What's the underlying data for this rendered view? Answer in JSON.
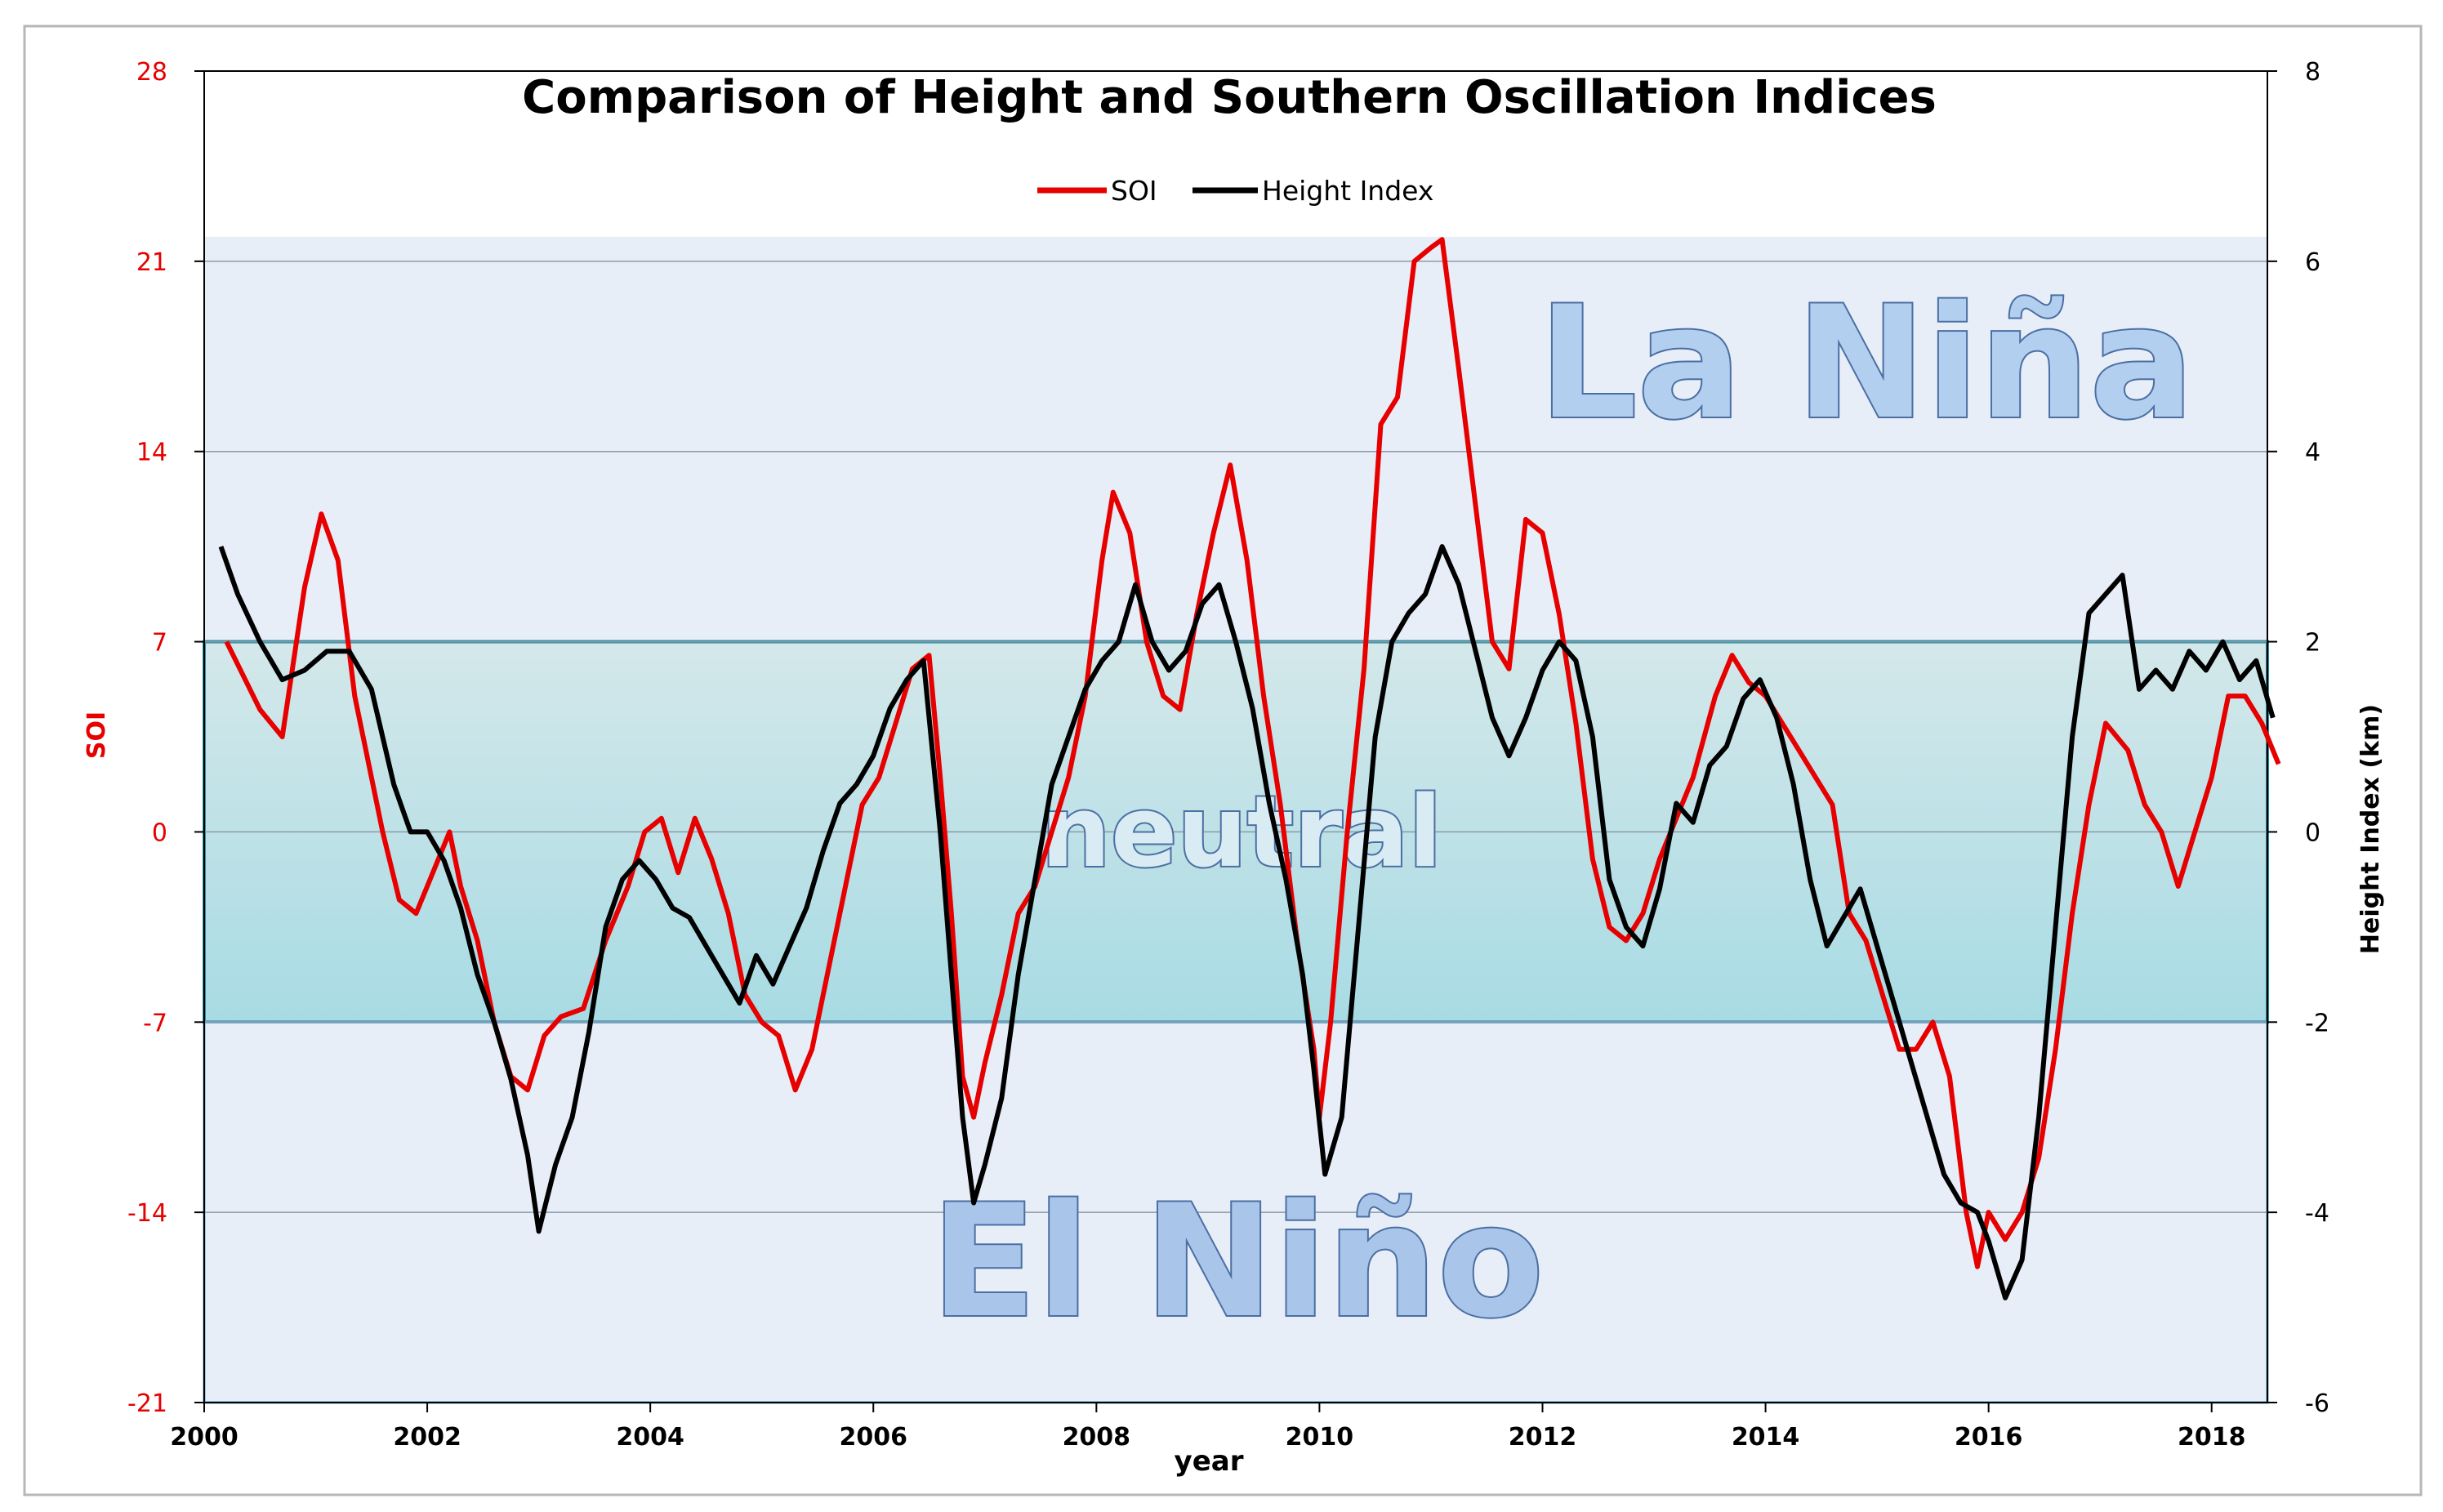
{
  "chart_data": {
    "type": "line",
    "title": "Comparison of Height and Southern Oscillation Indices",
    "xlabel": "year",
    "ylabel_left": "SOI",
    "ylabel_right": "Height Index (km)",
    "xlim": [
      2000,
      2018.5
    ],
    "ylim_left": [
      -21,
      28
    ],
    "ylim_right": [
      -6,
      8
    ],
    "x_ticks": [
      "2000",
      "2002",
      "2004",
      "2006",
      "2008",
      "2010",
      "2012",
      "2014",
      "2016",
      "2018"
    ],
    "y_left_ticks": [
      "28",
      "21",
      "14",
      "7",
      "0",
      "-7",
      "-14",
      "-21"
    ],
    "y_right_ticks": [
      "8",
      "6",
      "4",
      "2",
      "0",
      "-2",
      "-4",
      "-6"
    ],
    "grid": true,
    "legend_position": "top-center",
    "regions": [
      {
        "name": "La Niña",
        "label": "La Niña",
        "from": 7,
        "to": 21.9
      },
      {
        "name": "neutral",
        "label": "neutral",
        "from": -7,
        "to": 7
      },
      {
        "name": "El Niño",
        "label": "El Niño",
        "from": -21,
        "to": -7
      }
    ],
    "series": [
      {
        "name": "SOI",
        "axis": "left",
        "color": "#e60000",
        "points": [
          [
            2000.2,
            7
          ],
          [
            2000.5,
            4.5
          ],
          [
            2000.7,
            3.5
          ],
          [
            2000.9,
            9
          ],
          [
            2001.05,
            11.7
          ],
          [
            2001.2,
            10
          ],
          [
            2001.35,
            5
          ],
          [
            2001.6,
            0
          ],
          [
            2001.75,
            -2.5
          ],
          [
            2001.9,
            -3
          ],
          [
            2002.0,
            -2
          ],
          [
            2002.1,
            -1
          ],
          [
            2002.2,
            0
          ],
          [
            2002.3,
            -2
          ],
          [
            2002.45,
            -4
          ],
          [
            2002.6,
            -7
          ],
          [
            2002.75,
            -9
          ],
          [
            2002.9,
            -9.5
          ],
          [
            2003.05,
            -7.5
          ],
          [
            2003.2,
            -6.8
          ],
          [
            2003.4,
            -6.5
          ],
          [
            2003.6,
            -4
          ],
          [
            2003.8,
            -2
          ],
          [
            2003.95,
            0
          ],
          [
            2004.1,
            0.5
          ],
          [
            2004.25,
            -1.5
          ],
          [
            2004.4,
            0.5
          ],
          [
            2004.55,
            -1
          ],
          [
            2004.7,
            -3
          ],
          [
            2004.85,
            -6
          ],
          [
            2005.0,
            -7
          ],
          [
            2005.15,
            -7.5
          ],
          [
            2005.3,
            -9.5
          ],
          [
            2005.45,
            -8
          ],
          [
            2005.6,
            -5
          ],
          [
            2005.75,
            -2
          ],
          [
            2005.9,
            1
          ],
          [
            2006.05,
            2
          ],
          [
            2006.2,
            4
          ],
          [
            2006.35,
            6
          ],
          [
            2006.5,
            6.5
          ],
          [
            2006.6,
            2
          ],
          [
            2006.7,
            -3
          ],
          [
            2006.8,
            -9
          ],
          [
            2006.9,
            -10.5
          ],
          [
            2007.0,
            -8.5
          ],
          [
            2007.15,
            -6
          ],
          [
            2007.3,
            -3
          ],
          [
            2007.45,
            -2
          ],
          [
            2007.6,
            0
          ],
          [
            2007.75,
            2
          ],
          [
            2007.9,
            5
          ],
          [
            2008.05,
            10
          ],
          [
            2008.15,
            12.5
          ],
          [
            2008.3,
            11
          ],
          [
            2008.45,
            7
          ],
          [
            2008.6,
            5
          ],
          [
            2008.75,
            4.5
          ],
          [
            2008.9,
            8
          ],
          [
            2009.05,
            11
          ],
          [
            2009.2,
            13.5
          ],
          [
            2009.35,
            10
          ],
          [
            2009.5,
            5
          ],
          [
            2009.65,
            1
          ],
          [
            2009.8,
            -4
          ],
          [
            2009.95,
            -8
          ],
          [
            2010.0,
            -10.5
          ],
          [
            2010.1,
            -7
          ],
          [
            2010.25,
            0
          ],
          [
            2010.4,
            6
          ],
          [
            2010.55,
            15
          ],
          [
            2010.7,
            16
          ],
          [
            2010.85,
            21
          ],
          [
            2011.0,
            21.5
          ],
          [
            2011.1,
            21.8
          ],
          [
            2011.25,
            17
          ],
          [
            2011.4,
            12
          ],
          [
            2011.55,
            7
          ],
          [
            2011.7,
            6
          ],
          [
            2011.85,
            11.5
          ],
          [
            2012.0,
            11
          ],
          [
            2012.15,
            8
          ],
          [
            2012.3,
            4
          ],
          [
            2012.45,
            -1
          ],
          [
            2012.6,
            -3.5
          ],
          [
            2012.75,
            -4
          ],
          [
            2012.9,
            -3
          ],
          [
            2013.05,
            -1
          ],
          [
            2013.2,
            0.5
          ],
          [
            2013.35,
            2
          ],
          [
            2013.55,
            5
          ],
          [
            2013.7,
            6.5
          ],
          [
            2013.85,
            5.5
          ],
          [
            2014.0,
            5
          ],
          [
            2014.15,
            4
          ],
          [
            2014.3,
            3
          ],
          [
            2014.45,
            2
          ],
          [
            2014.6,
            1
          ],
          [
            2014.75,
            -3
          ],
          [
            2014.9,
            -4
          ],
          [
            2015.05,
            -6
          ],
          [
            2015.2,
            -8
          ],
          [
            2015.35,
            -8
          ],
          [
            2015.5,
            -7
          ],
          [
            2015.65,
            -9
          ],
          [
            2015.8,
            -14
          ],
          [
            2015.9,
            -16
          ],
          [
            2016.0,
            -14
          ],
          [
            2016.15,
            -15
          ],
          [
            2016.3,
            -14
          ],
          [
            2016.45,
            -12
          ],
          [
            2016.6,
            -8
          ],
          [
            2016.75,
            -3
          ],
          [
            2016.9,
            1
          ],
          [
            2017.05,
            4
          ],
          [
            2017.25,
            3
          ],
          [
            2017.4,
            1
          ],
          [
            2017.55,
            0
          ],
          [
            2017.7,
            -2
          ],
          [
            2017.85,
            0
          ],
          [
            2018.0,
            2
          ],
          [
            2018.15,
            5
          ],
          [
            2018.3,
            5
          ],
          [
            2018.45,
            4
          ],
          [
            2018.6,
            2.5
          ]
        ]
      },
      {
        "name": "Height Index",
        "axis": "right",
        "color": "#000000",
        "points": [
          [
            2000.15,
            3
          ],
          [
            2000.3,
            2.5
          ],
          [
            2000.5,
            2
          ],
          [
            2000.7,
            1.6
          ],
          [
            2000.9,
            1.7
          ],
          [
            2001.1,
            1.9
          ],
          [
            2001.3,
            1.9
          ],
          [
            2001.5,
            1.5
          ],
          [
            2001.7,
            0.5
          ],
          [
            2001.85,
            0
          ],
          [
            2002.0,
            0
          ],
          [
            2002.15,
            -0.3
          ],
          [
            2002.3,
            -0.8
          ],
          [
            2002.45,
            -1.5
          ],
          [
            2002.6,
            -2
          ],
          [
            2002.75,
            -2.6
          ],
          [
            2002.9,
            -3.4
          ],
          [
            2003.0,
            -4.2
          ],
          [
            2003.15,
            -3.5
          ],
          [
            2003.3,
            -3
          ],
          [
            2003.45,
            -2.1
          ],
          [
            2003.6,
            -1
          ],
          [
            2003.75,
            -0.5
          ],
          [
            2003.9,
            -0.3
          ],
          [
            2004.05,
            -0.5
          ],
          [
            2004.2,
            -0.8
          ],
          [
            2004.35,
            -0.9
          ],
          [
            2004.5,
            -1.2
          ],
          [
            2004.65,
            -1.5
          ],
          [
            2004.8,
            -1.8
          ],
          [
            2004.95,
            -1.3
          ],
          [
            2005.1,
            -1.6
          ],
          [
            2005.25,
            -1.2
          ],
          [
            2005.4,
            -0.8
          ],
          [
            2005.55,
            -0.2
          ],
          [
            2005.7,
            0.3
          ],
          [
            2005.85,
            0.5
          ],
          [
            2006.0,
            0.8
          ],
          [
            2006.15,
            1.3
          ],
          [
            2006.3,
            1.6
          ],
          [
            2006.45,
            1.8
          ],
          [
            2006.6,
            0
          ],
          [
            2006.7,
            -1.5
          ],
          [
            2006.8,
            -3
          ],
          [
            2006.9,
            -3.9
          ],
          [
            2007.0,
            -3.5
          ],
          [
            2007.15,
            -2.8
          ],
          [
            2007.3,
            -1.5
          ],
          [
            2007.45,
            -0.5
          ],
          [
            2007.6,
            0.5
          ],
          [
            2007.75,
            1
          ],
          [
            2007.9,
            1.5
          ],
          [
            2008.05,
            1.8
          ],
          [
            2008.2,
            2
          ],
          [
            2008.35,
            2.6
          ],
          [
            2008.5,
            2
          ],
          [
            2008.65,
            1.7
          ],
          [
            2008.8,
            1.9
          ],
          [
            2008.95,
            2.4
          ],
          [
            2009.1,
            2.6
          ],
          [
            2009.25,
            2
          ],
          [
            2009.4,
            1.3
          ],
          [
            2009.55,
            0.3
          ],
          [
            2009.7,
            -0.5
          ],
          [
            2009.85,
            -1.5
          ],
          [
            2009.95,
            -2.5
          ],
          [
            2010.05,
            -3.6
          ],
          [
            2010.2,
            -3
          ],
          [
            2010.35,
            -1
          ],
          [
            2010.5,
            1
          ],
          [
            2010.65,
            2
          ],
          [
            2010.8,
            2.3
          ],
          [
            2010.95,
            2.5
          ],
          [
            2011.1,
            3
          ],
          [
            2011.25,
            2.6
          ],
          [
            2011.4,
            1.9
          ],
          [
            2011.55,
            1.2
          ],
          [
            2011.7,
            0.8
          ],
          [
            2011.85,
            1.2
          ],
          [
            2012.0,
            1.7
          ],
          [
            2012.15,
            2
          ],
          [
            2012.3,
            1.8
          ],
          [
            2012.45,
            1
          ],
          [
            2012.6,
            -0.5
          ],
          [
            2012.75,
            -1
          ],
          [
            2012.9,
            -1.2
          ],
          [
            2013.05,
            -0.6
          ],
          [
            2013.2,
            0.3
          ],
          [
            2013.35,
            0.1
          ],
          [
            2013.5,
            0.7
          ],
          [
            2013.65,
            0.9
          ],
          [
            2013.8,
            1.4
          ],
          [
            2013.95,
            1.6
          ],
          [
            2014.1,
            1.2
          ],
          [
            2014.25,
            0.5
          ],
          [
            2014.4,
            -0.5
          ],
          [
            2014.55,
            -1.2
          ],
          [
            2014.7,
            -0.9
          ],
          [
            2014.85,
            -0.6
          ],
          [
            2015.0,
            -1.2
          ],
          [
            2015.15,
            -1.8
          ],
          [
            2015.3,
            -2.4
          ],
          [
            2015.45,
            -3
          ],
          [
            2015.6,
            -3.6
          ],
          [
            2015.75,
            -3.9
          ],
          [
            2015.9,
            -4
          ],
          [
            2016.0,
            -4.3
          ],
          [
            2016.15,
            -4.9
          ],
          [
            2016.3,
            -4.5
          ],
          [
            2016.45,
            -3
          ],
          [
            2016.6,
            -1
          ],
          [
            2016.75,
            1
          ],
          [
            2016.9,
            2.3
          ],
          [
            2017.05,
            2.5
          ],
          [
            2017.2,
            2.7
          ],
          [
            2017.35,
            1.5
          ],
          [
            2017.5,
            1.7
          ],
          [
            2017.65,
            1.5
          ],
          [
            2017.8,
            1.9
          ],
          [
            2017.95,
            1.7
          ],
          [
            2018.1,
            2
          ],
          [
            2018.25,
            1.6
          ],
          [
            2018.4,
            1.8
          ],
          [
            2018.55,
            1.2
          ]
        ]
      }
    ]
  }
}
